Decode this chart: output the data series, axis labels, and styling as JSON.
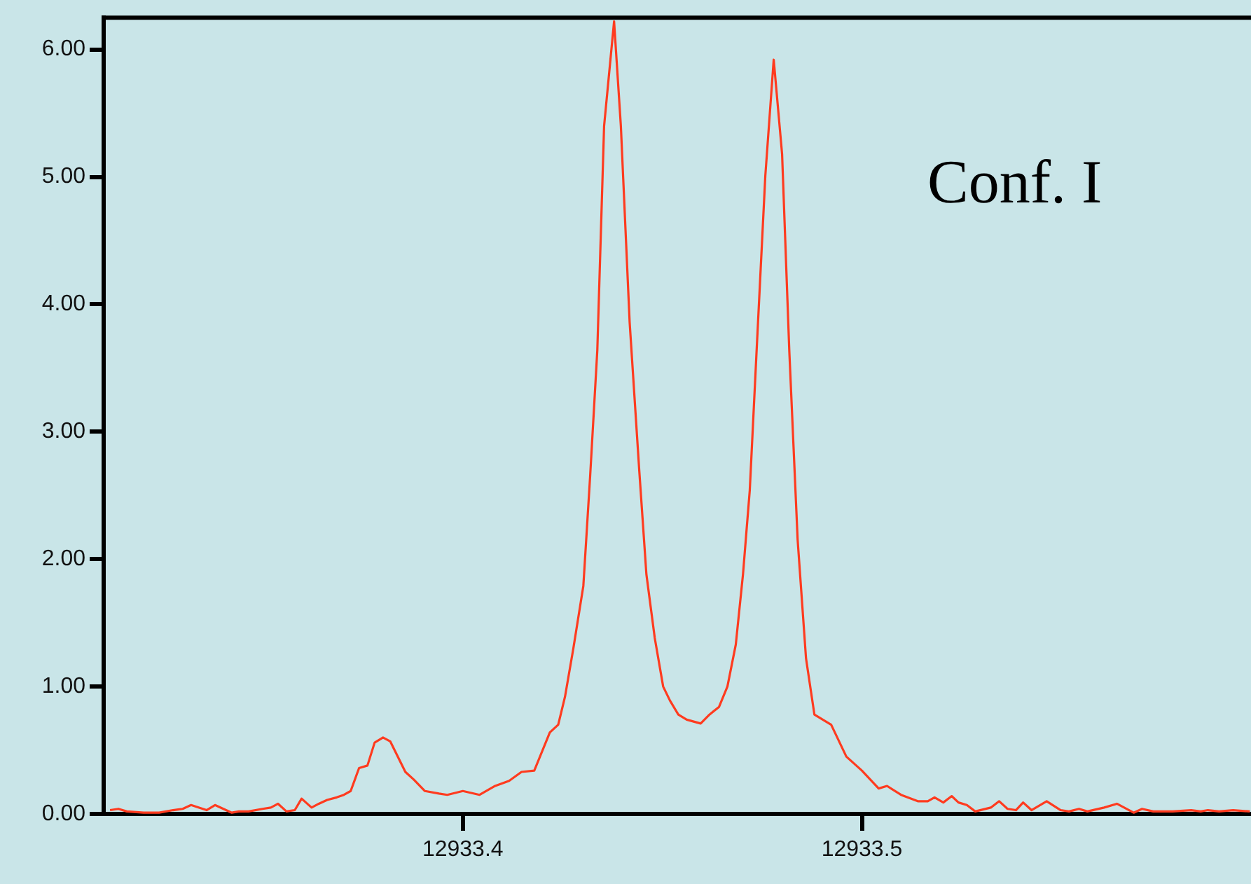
{
  "chart_data": {
    "type": "line",
    "annotations": [
      "Conf. I"
    ],
    "x": [
      12933.3116,
      12933.3137,
      12933.3158,
      12933.32,
      12933.3239,
      12933.3274,
      12933.3298,
      12933.3319,
      12933.3358,
      12933.3379,
      12933.34,
      12933.3421,
      12933.3439,
      12933.3463,
      12933.3498,
      12933.3519,
      12933.3537,
      12933.3558,
      12933.3579,
      12933.3596,
      12933.3621,
      12933.3639,
      12933.366,
      12933.3684,
      12933.3702,
      12933.3719,
      12933.374,
      12933.3761,
      12933.3779,
      12933.38,
      12933.3818,
      12933.3856,
      12933.3877,
      12933.3905,
      12933.394,
      12933.3961,
      12933.4,
      12933.4042,
      12933.4081,
      12933.4116,
      12933.4147,
      12933.4179,
      12933.4218,
      12933.4239,
      12933.4256,
      12933.4277,
      12933.4302,
      12933.4319,
      12933.4337,
      12933.4354,
      12933.4379,
      12933.4396,
      12933.4418,
      12933.4442,
      12933.446,
      12933.4481,
      12933.4502,
      12933.4519,
      12933.454,
      12933.4561,
      12933.4596,
      12933.4618,
      12933.4642,
      12933.4663,
      12933.4684,
      12933.4702,
      12933.4719,
      12933.4737,
      12933.4758,
      12933.4779,
      12933.48,
      12933.4818,
      12933.4839,
      12933.486,
      12933.4881,
      12933.4923,
      12933.4961,
      12933.5,
      12933.5042,
      12933.5063,
      12933.5098,
      12933.514,
      12933.5165,
      12933.5182,
      12933.5204,
      12933.5225,
      12933.5242,
      12933.5263,
      12933.5284,
      12933.5323,
      12933.5344,
      12933.5365,
      12933.5386,
      12933.5404,
      12933.5425,
      12933.5463,
      12933.5498,
      12933.5519,
      12933.5544,
      12933.5565,
      12933.5607,
      12933.5639,
      12933.5681,
      12933.5702,
      12933.573,
      12933.5779,
      12933.5825,
      12933.5849,
      12933.5867,
      12933.5895,
      12933.593,
      12933.5972
    ],
    "series": [
      {
        "color": "#ff3b1f",
        "values": [
          0.03,
          0.04,
          0.02,
          0.01,
          0.01,
          0.03,
          0.04,
          0.07,
          0.03,
          0.07,
          0.04,
          0.01,
          0.02,
          0.02,
          0.04,
          0.05,
          0.08,
          0.02,
          0.03,
          0.12,
          0.05,
          0.08,
          0.11,
          0.13,
          0.15,
          0.18,
          0.36,
          0.38,
          0.56,
          0.6,
          0.57,
          0.33,
          0.27,
          0.18,
          0.16,
          0.15,
          0.18,
          0.15,
          0.22,
          0.26,
          0.33,
          0.34,
          0.64,
          0.7,
          0.92,
          1.3,
          1.79,
          2.65,
          3.64,
          5.4,
          6.22,
          5.4,
          3.86,
          2.7,
          1.88,
          1.38,
          1.0,
          0.89,
          0.78,
          0.74,
          0.71,
          0.78,
          0.84,
          1.0,
          1.33,
          1.88,
          2.54,
          3.69,
          5.01,
          5.92,
          5.18,
          3.64,
          2.15,
          1.22,
          0.78,
          0.7,
          0.45,
          0.34,
          0.2,
          0.22,
          0.15,
          0.1,
          0.1,
          0.13,
          0.09,
          0.14,
          0.09,
          0.07,
          0.02,
          0.05,
          0.1,
          0.04,
          0.03,
          0.09,
          0.03,
          0.1,
          0.03,
          0.02,
          0.04,
          0.02,
          0.05,
          0.08,
          0.01,
          0.04,
          0.02,
          0.02,
          0.03,
          0.02,
          0.03,
          0.02,
          0.03,
          0.02
        ]
      }
    ],
    "xlim": [
      12933.31,
      12933.5975
    ],
    "ylim": [
      0,
      6.25
    ],
    "xticks": [
      12933.4,
      12933.5
    ],
    "yticks": [
      {
        "value": 0,
        "label": "0.00"
      },
      {
        "value": 1,
        "label": "1.00"
      },
      {
        "value": 2,
        "label": "2.00"
      },
      {
        "value": 3,
        "label": "3.00"
      },
      {
        "value": 4,
        "label": "4.00"
      },
      {
        "value": 5,
        "label": "5.00"
      },
      {
        "value": 6,
        "label": "6.00"
      }
    ],
    "grid": false,
    "legend": false,
    "marker": "none",
    "line_style": "solid"
  }
}
